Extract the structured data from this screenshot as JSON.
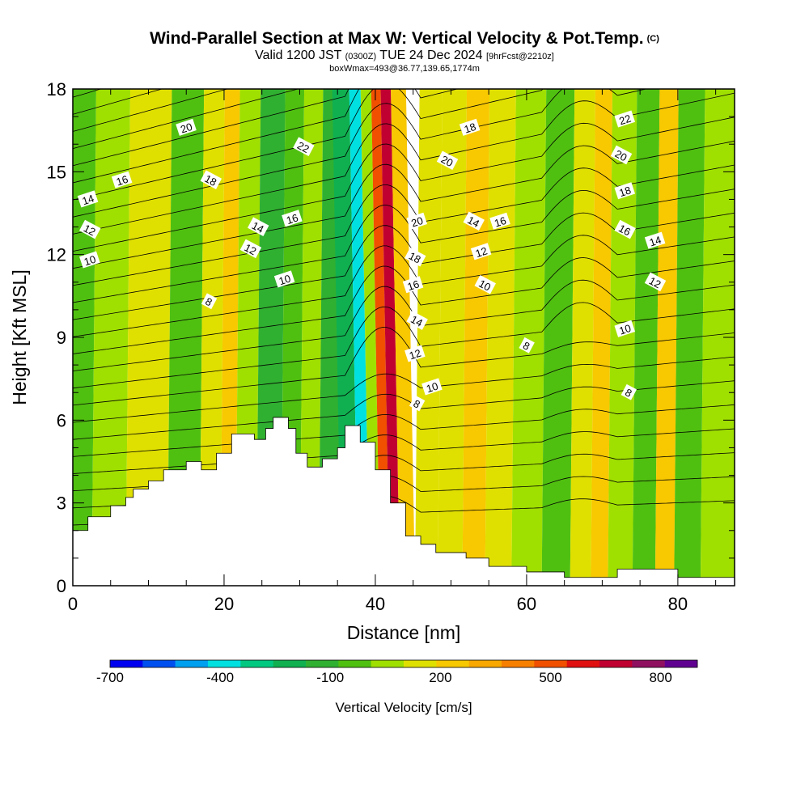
{
  "title": {
    "main": "Wind-Parallel Section at Max W: Vertical Velocity & Pot.Temp.",
    "copyright": "(C)",
    "valid_prefix": "Valid 1200 JST",
    "valid_utc": "(0300Z)",
    "valid_date": "TUE 24 Dec 2024",
    "forecast": "[9hrFcst@2210z]",
    "box": "boxWmax=493@36.77,139.65,1774m"
  },
  "chart_data": {
    "type": "heatmap",
    "xlabel": "Distance [nm]",
    "ylabel": "Height [Kft MSL]",
    "xlim": [
      0,
      87.5
    ],
    "ylim": [
      0,
      18
    ],
    "x_ticks": [
      "0",
      "20",
      "40",
      "60",
      "80"
    ],
    "x_tick_values": [
      0,
      20,
      40,
      60,
      80
    ],
    "y_ticks": [
      "0",
      "3",
      "6",
      "9",
      "12",
      "15",
      "18"
    ],
    "y_tick_values": [
      0,
      3,
      6,
      9,
      12,
      15,
      18
    ],
    "colorbar": {
      "title": "Vertical Velocity [cm/s]",
      "labels": [
        "-700",
        "-400",
        "-100",
        "200",
        "500",
        "800"
      ],
      "label_values": [
        -700,
        -400,
        -100,
        200,
        500,
        800
      ],
      "min": -700,
      "max": 900,
      "colors": [
        "#0000f0",
        "#0050f0",
        "#00a0f0",
        "#00e0e0",
        "#00c880",
        "#10b050",
        "#30b030",
        "#50c010",
        "#a0e000",
        "#e0e000",
        "#f8c800",
        "#f8a800",
        "#f88000",
        "#f05000",
        "#e01010",
        "#c00030",
        "#901060",
        "#600090"
      ]
    },
    "velocity_bands": [
      {
        "x_center": 1,
        "value": -60
      },
      {
        "x_center": 4,
        "value": 40
      },
      {
        "x_center": 10,
        "value": 100
      },
      {
        "x_center": 15,
        "value": -40
      },
      {
        "x_center": 18.5,
        "value": 130
      },
      {
        "x_center": 20.5,
        "value": 230
      },
      {
        "x_center": 22.5,
        "value": 80
      },
      {
        "x_center": 26,
        "value": -100
      },
      {
        "x_center": 29,
        "value": -30
      },
      {
        "x_center": 31,
        "value": 60
      },
      {
        "x_center": 34,
        "value": -80
      },
      {
        "x_center": 37,
        "value": -230
      },
      {
        "x_center": 38.5,
        "value": -400
      },
      {
        "x_center": 40,
        "value": 90
      },
      {
        "x_center": 41.3,
        "value": 500
      },
      {
        "x_center": 42.5,
        "value": 720
      },
      {
        "x_center": 44,
        "value": 260
      },
      {
        "x_center": 46.5,
        "value": 120
      },
      {
        "x_center": 50,
        "value": 160
      },
      {
        "x_center": 53,
        "value": 240
      },
      {
        "x_center": 56,
        "value": 120
      },
      {
        "x_center": 60,
        "value": 40
      },
      {
        "x_center": 64,
        "value": -50
      },
      {
        "x_center": 67.5,
        "value": 120
      },
      {
        "x_center": 69.5,
        "value": 240
      },
      {
        "x_center": 72,
        "value": 80
      },
      {
        "x_center": 76,
        "value": -40
      },
      {
        "x_center": 78,
        "value": 230
      },
      {
        "x_center": 81,
        "value": -20
      },
      {
        "x_center": 85,
        "value": 60
      }
    ],
    "terrain": {
      "x": [
        0,
        2,
        5,
        7,
        8,
        10,
        12,
        15,
        17,
        19,
        21,
        24,
        25.5,
        26.5,
        28.5,
        29.5,
        31,
        33,
        35,
        36,
        38,
        40,
        42,
        44,
        46,
        48,
        52,
        55,
        60,
        65,
        70,
        72,
        78,
        80,
        87.5
      ],
      "height_kft": [
        2.0,
        2.5,
        2.9,
        3.2,
        3.5,
        3.8,
        4.2,
        4.5,
        4.2,
        4.8,
        5.5,
        5.3,
        5.7,
        6.1,
        5.7,
        4.8,
        4.3,
        4.6,
        5.0,
        5.8,
        5.2,
        4.2,
        3.0,
        1.8,
        1.5,
        1.2,
        1.0,
        0.7,
        0.5,
        0.3,
        0.3,
        0.6,
        0.6,
        0.3,
        0.3
      ]
    },
    "theta_contour_labels": [
      {
        "text": "20",
        "x": 30,
        "y": 16.6
      },
      {
        "text": "22",
        "x": 61,
        "y": 15.9
      },
      {
        "text": "16",
        "x": 13,
        "y": 14.7
      },
      {
        "text": "18",
        "x": 36.5,
        "y": 14.7
      },
      {
        "text": "14",
        "x": 4,
        "y": 14.0
      },
      {
        "text": "12",
        "x": 4.5,
        "y": 12.9
      },
      {
        "text": "10",
        "x": 4.5,
        "y": 11.8
      },
      {
        "text": "14",
        "x": 49,
        "y": 13.0
      },
      {
        "text": "16",
        "x": 58,
        "y": 13.3
      },
      {
        "text": "12",
        "x": 47,
        "y": 12.2
      },
      {
        "text": "10",
        "x": 56,
        "y": 11.1
      },
      {
        "text": "8",
        "x": 36,
        "y": 10.3
      },
      {
        "text": "20",
        "x": 91,
        "y": 13.2
      },
      {
        "text": "18",
        "x": 90.5,
        "y": 11.9
      },
      {
        "text": "16",
        "x": 90,
        "y": 10.9
      },
      {
        "text": "14",
        "x": 91,
        "y": 9.6
      },
      {
        "text": "12",
        "x": 90.5,
        "y": 8.4
      },
      {
        "text": "8",
        "x": 91,
        "y": 6.6
      },
      {
        "text": "10",
        "x": 95,
        "y": 7.2
      },
      {
        "text": "20",
        "x": 99,
        "y": 15.4
      },
      {
        "text": "18",
        "x": 105,
        "y": 16.6
      },
      {
        "text": "14",
        "x": 106,
        "y": 13.2
      },
      {
        "text": "12",
        "x": 108,
        "y": 12.1
      },
      {
        "text": "10",
        "x": 109,
        "y": 10.9
      },
      {
        "text": "16",
        "x": 113,
        "y": 13.2
      },
      {
        "text": "8",
        "x": 120,
        "y": 8.7
      },
      {
        "text": "22",
        "x": 146,
        "y": 16.9
      },
      {
        "text": "20",
        "x": 145,
        "y": 15.6
      },
      {
        "text": "18",
        "x": 146,
        "y": 14.3
      },
      {
        "text": "16",
        "x": 146,
        "y": 12.9
      },
      {
        "text": "14",
        "x": 154,
        "y": 12.5
      },
      {
        "text": "12",
        "x": 154,
        "y": 11.0
      },
      {
        "text": "10",
        "x": 146,
        "y": 9.3
      },
      {
        "text": "8",
        "x": 147,
        "y": 7.0
      }
    ]
  }
}
